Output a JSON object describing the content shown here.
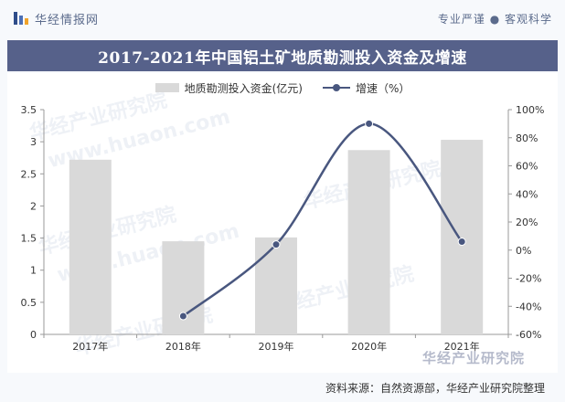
{
  "header": {
    "brand": "华经情报网",
    "slogan": "专业严谨 ● 客观科学"
  },
  "chart_data": {
    "type": "bar",
    "title": "2017-2021年中国铝土矿地质勘测投入资金及增速",
    "categories": [
      "2017年",
      "2018年",
      "2019年",
      "2020年",
      "2021年"
    ],
    "series": [
      {
        "name": "地质勘测投入资金(亿元)",
        "type": "bar",
        "axis": "left",
        "values": [
          2.72,
          1.45,
          1.51,
          2.87,
          3.03
        ]
      },
      {
        "name": "增速（%）",
        "type": "line",
        "axis": "right",
        "values": [
          null,
          -47,
          4,
          90,
          6
        ]
      }
    ],
    "y_left": {
      "min": 0,
      "max": 3.5,
      "ticks": [
        "0",
        "0.5",
        "1",
        "1.5",
        "2",
        "2.5",
        "3",
        "3.5"
      ]
    },
    "y_right": {
      "min": -60,
      "max": 100,
      "ticks": [
        "-60%",
        "-40%",
        "-20%",
        "0%",
        "20%",
        "40%",
        "60%",
        "80%",
        "100%"
      ]
    },
    "legend_position": "top",
    "grid": false,
    "colors": {
      "bar": "#d9d9d9",
      "line": "#49577f",
      "title_bg": "#56618a"
    }
  },
  "footer": {
    "source": "资料来源：自然资源部，华经产业研究院整理",
    "logo": "华经产业研究院"
  },
  "watermarks": [
    "华经产业研究院",
    "www.huaon.com"
  ]
}
